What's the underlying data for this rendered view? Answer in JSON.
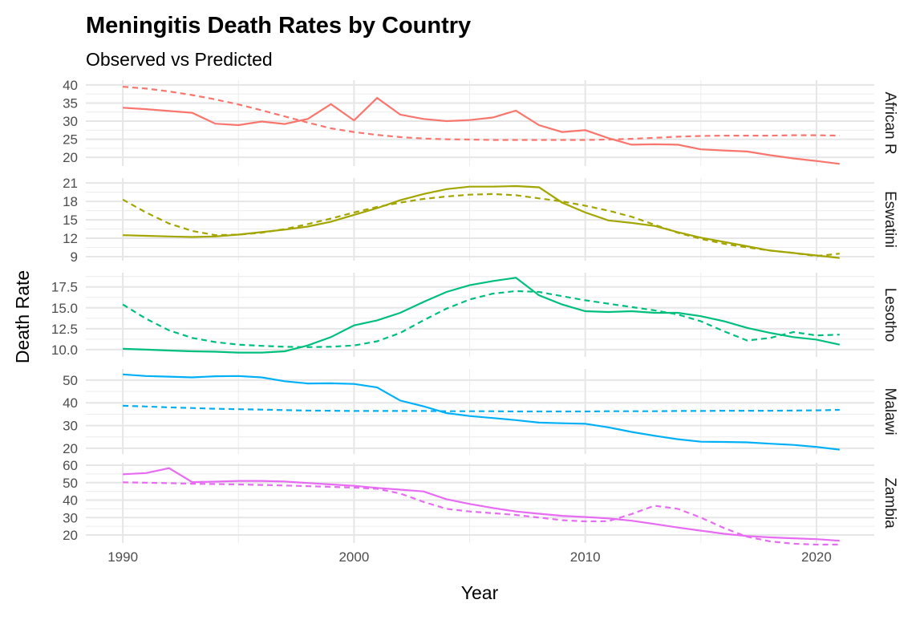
{
  "chart_data": {
    "type": "line",
    "title": "Meningitis Death Rates by Country",
    "subtitle": "Observed vs Predicted",
    "xlabel": "Year",
    "ylabel": "Death Rate",
    "xlim": [
      1988.4,
      2022.5
    ],
    "x_ticks": [
      1990,
      2000,
      2010,
      2020
    ],
    "grid": true,
    "legend": "none",
    "line_styles": {
      "observed": "solid",
      "predicted": "dashed"
    },
    "x": [
      1990,
      1991,
      1992,
      1993,
      1994,
      1995,
      1996,
      1997,
      1998,
      1999,
      2000,
      2001,
      2002,
      2003,
      2004,
      2005,
      2006,
      2007,
      2008,
      2009,
      2010,
      2011,
      2012,
      2013,
      2014,
      2015,
      2016,
      2017,
      2018,
      2019,
      2020,
      2021
    ],
    "facets": [
      {
        "name": "African R",
        "color": "#F8766D",
        "ylim": [
          17.6,
          41.3
        ],
        "y_ticks": [
          20,
          25,
          30,
          35,
          40
        ],
        "y_tick_labels": [
          "20",
          "25",
          "30",
          "35",
          "40"
        ],
        "observed": [
          33.7,
          33.3,
          32.8,
          32.3,
          29.3,
          28.9,
          29.9,
          29.2,
          30.6,
          34.7,
          30.2,
          36.4,
          31.8,
          30.6,
          30.0,
          30.3,
          31.0,
          32.9,
          28.9,
          27.0,
          27.5,
          25.3,
          23.5,
          23.6,
          23.5,
          22.2,
          21.9,
          21.6,
          20.6,
          19.7,
          19.0,
          18.2
        ],
        "predicted": [
          39.5,
          39.0,
          38.2,
          37.2,
          36.0,
          34.6,
          33.0,
          31.3,
          29.6,
          28.0,
          27.0,
          26.2,
          25.6,
          25.2,
          25.0,
          24.9,
          24.8,
          24.8,
          24.8,
          24.8,
          24.8,
          24.9,
          25.1,
          25.4,
          25.7,
          25.9,
          26.0,
          26.0,
          26.0,
          26.1,
          26.1,
          26.0
        ]
      },
      {
        "name": "Eswatini",
        "color": "#A3A500",
        "ylim": [
          8.35,
          21.8
        ],
        "y_ticks": [
          9,
          12,
          15,
          18,
          21
        ],
        "y_tick_labels": [
          "9",
          "12",
          "15",
          "18",
          "21"
        ],
        "observed": [
          12.5,
          12.4,
          12.3,
          12.2,
          12.3,
          12.6,
          13.0,
          13.4,
          13.9,
          14.7,
          15.8,
          16.9,
          18.2,
          19.2,
          20.0,
          20.4,
          20.4,
          20.5,
          20.3,
          17.8,
          16.2,
          14.9,
          14.5,
          14.0,
          13.0,
          12.1,
          11.4,
          10.7,
          10.0,
          9.6,
          9.2,
          8.8
        ],
        "predicted": [
          18.3,
          16.2,
          14.4,
          13.2,
          12.5,
          12.6,
          12.9,
          13.5,
          14.3,
          15.2,
          16.2,
          17.1,
          17.8,
          18.4,
          18.8,
          19.1,
          19.2,
          19.0,
          18.5,
          18.0,
          17.3,
          16.5,
          15.5,
          14.2,
          12.9,
          11.9,
          11.1,
          10.5,
          10.0,
          9.6,
          9.1,
          9.5
        ]
      },
      {
        "name": "Lesotho",
        "color": "#00BF7D",
        "ylim": [
          9.13,
          19.2
        ],
        "y_ticks": [
          10,
          12.5,
          15,
          17.5
        ],
        "y_tick_labels": [
          "10.0",
          "12.5",
          "15.0",
          "17.5"
        ],
        "observed": [
          10.1,
          10.0,
          9.9,
          9.8,
          9.75,
          9.65,
          9.65,
          9.8,
          10.5,
          11.5,
          12.9,
          13.5,
          14.4,
          15.7,
          16.9,
          17.7,
          18.2,
          18.6,
          16.5,
          15.4,
          14.6,
          14.5,
          14.6,
          14.4,
          14.4,
          14.0,
          13.4,
          12.6,
          12.0,
          11.5,
          11.2,
          10.6
        ],
        "predicted": [
          15.4,
          13.7,
          12.3,
          11.4,
          10.9,
          10.6,
          10.45,
          10.35,
          10.3,
          10.35,
          10.5,
          11.0,
          12.0,
          13.5,
          14.9,
          16.0,
          16.7,
          17.0,
          16.9,
          16.4,
          15.9,
          15.5,
          15.1,
          14.7,
          14.2,
          13.4,
          12.2,
          11.1,
          11.4,
          12.1,
          11.7,
          11.8
        ]
      },
      {
        "name": "Malawi",
        "color": "#00B0F6",
        "ylim": [
          17.5,
          54.9
        ],
        "y_ticks": [
          20,
          30,
          40,
          50
        ],
        "y_tick_labels": [
          "20",
          "30",
          "40",
          "50"
        ],
        "observed": [
          52.5,
          51.8,
          51.5,
          51.2,
          51.7,
          51.8,
          51.2,
          49.5,
          48.5,
          48.6,
          48.3,
          46.8,
          41.0,
          38.5,
          35.5,
          34.2,
          33.3,
          32.4,
          31.3,
          31.0,
          30.8,
          29.2,
          27.2,
          25.5,
          24.0,
          22.9,
          22.8,
          22.6,
          22.0,
          21.5,
          20.6,
          19.4
        ],
        "predicted": [
          38.7,
          38.4,
          38.0,
          37.7,
          37.4,
          37.2,
          37.0,
          36.8,
          36.6,
          36.5,
          36.4,
          36.4,
          36.4,
          36.4,
          36.3,
          36.3,
          36.3,
          36.2,
          36.2,
          36.2,
          36.2,
          36.3,
          36.3,
          36.3,
          36.4,
          36.4,
          36.5,
          36.5,
          36.5,
          36.6,
          36.7,
          36.9
        ]
      },
      {
        "name": "Zambia",
        "color": "#E76BF3",
        "ylim": [
          15.4,
          61.4
        ],
        "y_ticks": [
          20,
          30,
          40,
          50,
          60
        ],
        "y_tick_labels": [
          "20",
          "30",
          "40",
          "50",
          "60"
        ],
        "observed": [
          54.8,
          55.5,
          58.3,
          50.3,
          50.6,
          51.0,
          51.0,
          50.7,
          49.8,
          49.0,
          48.2,
          47.0,
          46.0,
          45.0,
          40.5,
          37.8,
          35.5,
          33.5,
          32.2,
          31.0,
          30.3,
          29.5,
          28.2,
          26.3,
          24.3,
          22.5,
          20.7,
          19.4,
          18.6,
          18.1,
          17.6,
          16.7
        ],
        "predicted": [
          50.2,
          50.0,
          49.7,
          49.4,
          49.2,
          49.0,
          48.7,
          48.4,
          48.0,
          47.6,
          47.2,
          46.5,
          43.8,
          39.0,
          35.0,
          33.5,
          32.5,
          31.5,
          30.0,
          28.5,
          27.8,
          27.9,
          32.0,
          36.8,
          35.0,
          30.0,
          24.0,
          19.0,
          16.3,
          15.0,
          14.5,
          14.5
        ]
      }
    ]
  }
}
